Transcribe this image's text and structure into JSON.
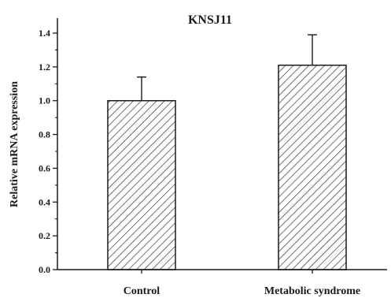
{
  "chart_data": {
    "type": "bar",
    "title": "KNSJ11",
    "xlabel": "",
    "ylabel": "Relative mRNA expression",
    "categories": [
      "Control",
      "Metabolic syndrome"
    ],
    "values": [
      1.0,
      1.21
    ],
    "error_plus": [
      0.14,
      0.18
    ],
    "ylim": [
      0,
      1.5
    ],
    "yticks": [
      "0.0",
      "0.2",
      "0.4",
      "0.6",
      "0.8",
      "1.0",
      "1.2",
      "1.4"
    ],
    "bar_fill": "diagonal-hatch",
    "grid": false,
    "legend": "none",
    "colors": {
      "axis": "#1a1a1a",
      "bar_edge": "#1a1a1a",
      "hatch": "#333333"
    }
  }
}
